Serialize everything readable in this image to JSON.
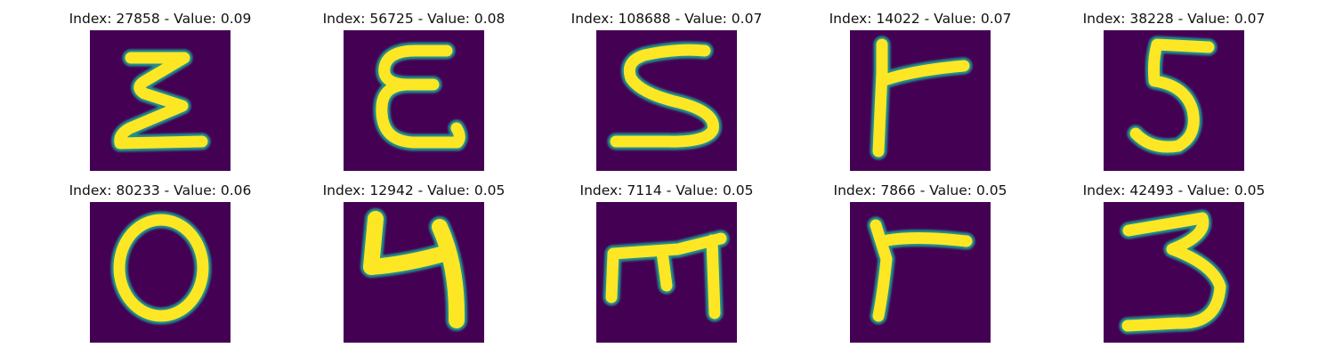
{
  "figure": {
    "colormap": {
      "low": "#440154",
      "mid": "#21908C",
      "high": "#FDE725"
    },
    "tiles": [
      {
        "title": "Index: 27858 - Value: 0.09",
        "glyph": "sigma-like-z-stroke"
      },
      {
        "title": "Index: 56725 - Value: 0.08",
        "glyph": "epsilon-like-stroke"
      },
      {
        "title": "Index: 108688 - Value: 0.07",
        "glyph": "s-like-stroke"
      },
      {
        "title": "Index: 14022 - Value: 0.07",
        "glyph": "r-like-stroke"
      },
      {
        "title": "Index: 38228 - Value: 0.07",
        "glyph": "digit-5-stroke"
      },
      {
        "title": "Index: 80233 - Value: 0.06",
        "glyph": "digit-0-stroke"
      },
      {
        "title": "Index: 12942 - Value: 0.05",
        "glyph": "digit-4-stroke"
      },
      {
        "title": "Index: 7114 - Value: 0.05",
        "glyph": "m-like-stroke"
      },
      {
        "title": "Index: 7866 - Value: 0.05",
        "glyph": "r-like-stroke"
      },
      {
        "title": "Index: 42493 - Value: 0.05",
        "glyph": "digit-3-stroke"
      }
    ]
  }
}
